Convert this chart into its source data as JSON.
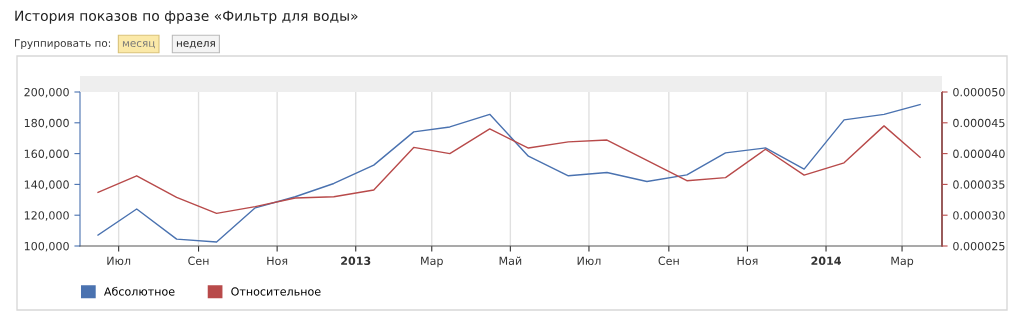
{
  "chart_data": {
    "type": "line",
    "title": "История показов по фразе «Фильтр для воды»",
    "annotations": [
      "Группировать по:",
      "месяц",
      "неделя"
    ],
    "x": [
      "2012-06-15",
      "2012-07-15",
      "2012-08-15",
      "2012-09-15",
      "2012-10-15",
      "2012-11-15",
      "2012-12-15",
      "2013-01-15",
      "2013-02-15",
      "2013-03-15",
      "2013-04-15",
      "2013-05-15",
      "2013-06-15",
      "2013-07-15",
      "2013-08-15",
      "2013-09-15",
      "2013-10-15",
      "2013-11-15",
      "2013-12-15",
      "2014-01-15",
      "2014-02-15",
      "2014-03-15"
    ],
    "series": [
      {
        "name": "Абсолютное",
        "color": "#4a72b0",
        "values": [
          107100,
          124000,
          104500,
          102600,
          124800,
          132000,
          140600,
          152500,
          174100,
          177300,
          185500,
          158300,
          145600,
          147700,
          141900,
          146200,
          160500,
          163700,
          149900,
          181900,
          185500,
          191800
        ]
      },
      {
        "name": "Относительное",
        "color": "#b84a4a",
        "axis": "y2",
        "values": [
          3.37e-05,
          3.64e-05,
          3.29e-05,
          3.03e-05,
          3.14e-05,
          3.28e-05,
          3.3e-05,
          3.41e-05,
          4.1e-05,
          4e-05,
          4.4e-05,
          4.09e-05,
          4.19e-05,
          4.22e-05,
          3.89e-05,
          3.56e-05,
          3.61e-05,
          4.07e-05,
          3.65e-05,
          3.85e-05,
          4.45e-05,
          3.94e-05
        ]
      }
    ],
    "xlim": [
      "2012-06-01",
      "2014-04-01"
    ],
    "xticks": [
      {
        "value": "2012-07-01",
        "label": "Июл"
      },
      {
        "value": "2012-09-01",
        "label": "Сен"
      },
      {
        "value": "2012-11-01",
        "label": "Ноя"
      },
      {
        "value": "2013-01-01",
        "label": "2013"
      },
      {
        "value": "2013-03-01",
        "label": "Мар"
      },
      {
        "value": "2013-05-01",
        "label": "Май"
      },
      {
        "value": "2013-07-01",
        "label": "Июл"
      },
      {
        "value": "2013-09-01",
        "label": "Сен"
      },
      {
        "value": "2013-11-01",
        "label": "Ноя"
      },
      {
        "value": "2014-01-01",
        "label": "2014"
      },
      {
        "value": "2014-03-01",
        "label": "Мар"
      }
    ],
    "ylim": [
      100000,
      200000
    ],
    "yticks": [
      {
        "value": 100000,
        "label": "100,000"
      },
      {
        "value": 120000,
        "label": "120,000"
      },
      {
        "value": 140000,
        "label": "140,000"
      },
      {
        "value": 160000,
        "label": "160,000"
      },
      {
        "value": 180000,
        "label": "180,000"
      },
      {
        "value": 200000,
        "label": "200,000"
      }
    ],
    "y2lim": [
      2.5e-05,
      5e-05
    ],
    "y2ticks": [
      {
        "value": 2.5e-05,
        "label": "0.000025"
      },
      {
        "value": 3e-05,
        "label": "0.000030"
      },
      {
        "value": 3.5e-05,
        "label": "0.000035"
      },
      {
        "value": 4e-05,
        "label": "0.000040"
      },
      {
        "value": 4.5e-05,
        "label": "0.000045"
      },
      {
        "value": 5e-05,
        "label": "0.000050"
      }
    ],
    "grid": "x",
    "legend": "bottom left",
    "marker": "none",
    "line_style": "solid"
  }
}
